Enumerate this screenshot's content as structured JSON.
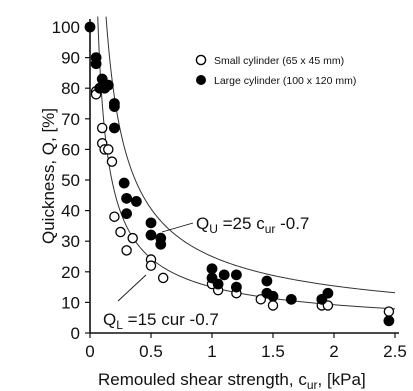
{
  "chart_data": {
    "type": "scatter",
    "xlabel": "Remouled shear strength, c",
    "xlabel_sub": "ur",
    "xlabel_unit": ", [kPa]",
    "ylabel": "Quickness, Q, [%]",
    "xlim": [
      0,
      2.5
    ],
    "ylim": [
      0,
      100
    ],
    "xticks": [
      "0",
      "0.5",
      "1",
      "1.5",
      "2",
      "2.5"
    ],
    "yticks": [
      "0",
      "10",
      "20",
      "30",
      "40",
      "50",
      "60",
      "70",
      "80",
      "90",
      "100"
    ],
    "grid": false,
    "legend_position": "top-right",
    "series": [
      {
        "name": "Small cylinder (65 x 45 mm)",
        "marker": "open-circle",
        "points": [
          [
            0.05,
            79
          ],
          [
            0.05,
            78
          ],
          [
            0.08,
            80
          ],
          [
            0.1,
            67
          ],
          [
            0.1,
            62
          ],
          [
            0.12,
            60
          ],
          [
            0.15,
            60
          ],
          [
            0.18,
            56
          ],
          [
            0.2,
            38
          ],
          [
            0.25,
            33
          ],
          [
            0.3,
            27
          ],
          [
            0.35,
            31
          ],
          [
            0.5,
            24
          ],
          [
            0.5,
            22
          ],
          [
            0.6,
            18
          ],
          [
            1.0,
            16
          ],
          [
            1.05,
            14
          ],
          [
            1.2,
            13
          ],
          [
            1.4,
            11
          ],
          [
            1.5,
            9
          ],
          [
            1.9,
            9
          ],
          [
            1.95,
            9
          ],
          [
            2.45,
            7
          ]
        ]
      },
      {
        "name": "Large cylinder (100 x 120 mm)",
        "marker": "filled-circle",
        "points": [
          [
            0.0,
            100
          ],
          [
            0.05,
            90
          ],
          [
            0.05,
            88
          ],
          [
            0.08,
            80
          ],
          [
            0.1,
            83
          ],
          [
            0.12,
            80
          ],
          [
            0.15,
            81
          ],
          [
            0.2,
            75
          ],
          [
            0.2,
            74
          ],
          [
            0.2,
            67
          ],
          [
            0.28,
            49
          ],
          [
            0.3,
            44
          ],
          [
            0.3,
            39
          ],
          [
            0.38,
            43
          ],
          [
            0.5,
            36
          ],
          [
            0.5,
            32
          ],
          [
            0.58,
            31
          ],
          [
            0.58,
            29
          ],
          [
            1.0,
            21
          ],
          [
            1.0,
            18
          ],
          [
            1.05,
            16
          ],
          [
            1.1,
            19
          ],
          [
            1.2,
            19
          ],
          [
            1.2,
            15
          ],
          [
            1.45,
            17
          ],
          [
            1.45,
            13
          ],
          [
            1.5,
            12
          ],
          [
            1.65,
            11
          ],
          [
            1.9,
            11
          ],
          [
            1.95,
            13
          ],
          [
            2.45,
            4
          ]
        ]
      }
    ],
    "curves": [
      {
        "name": "QU",
        "coef": 25,
        "exponent": -0.7,
        "style": "thin"
      },
      {
        "name": "QL",
        "coef": 15,
        "exponent": -0.7,
        "style": "thin"
      }
    ],
    "annotations": {
      "upper": {
        "main": "Q",
        "sub": "U",
        "rest": " =25 c",
        "sub2": "ur",
        "tail": " -0.7"
      },
      "lower": {
        "main": "Q",
        "sub": "L",
        "rest": " =15 cur -0.7"
      }
    },
    "colors": {
      "axis": "#111111",
      "marker": "#000000",
      "curve": "#333333"
    }
  }
}
